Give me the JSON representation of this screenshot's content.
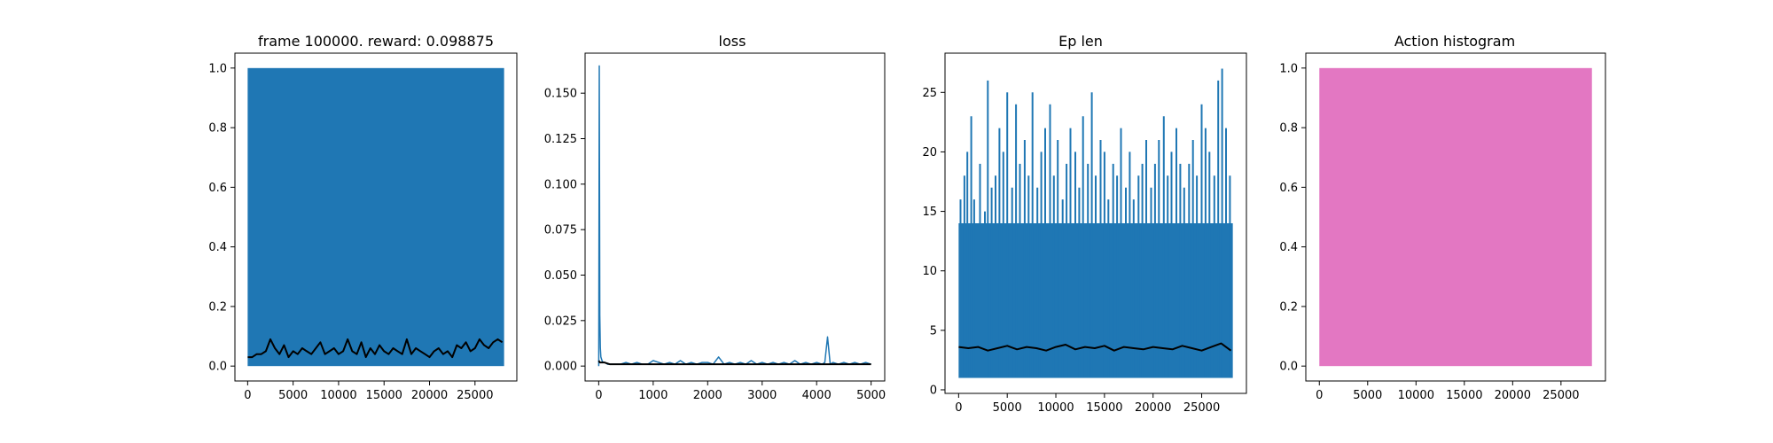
{
  "chart_data": [
    {
      "type": "line",
      "title": "frame 100000. reward: 0.098875",
      "xlim": [
        -1400,
        29600
      ],
      "ylim": [
        -0.05,
        1.05
      ],
      "xticks": [
        0,
        5000,
        10000,
        15000,
        20000,
        25000
      ],
      "yticks": [
        0.0,
        0.2,
        0.4,
        0.6,
        0.8,
        1.0
      ],
      "ytick_labels": [
        "0.0",
        "0.2",
        "0.4",
        "0.6",
        "0.8",
        "1.0"
      ],
      "colors": {
        "raw": "#1f77b4",
        "smoothed": "#000000"
      },
      "series": [
        {
          "style": "band",
          "x": [
            0,
            28200
          ],
          "y_range": [
            0.0,
            1.0
          ]
        },
        {
          "style": "line",
          "x": [
            0,
            500,
            1000,
            1500,
            2000,
            2500,
            3000,
            3500,
            4000,
            4500,
            5000,
            5500,
            6000,
            6500,
            7000,
            7500,
            8000,
            8500,
            9000,
            9500,
            10000,
            10500,
            11000,
            11500,
            12000,
            12500,
            13000,
            13500,
            14000,
            14500,
            15000,
            15500,
            16000,
            16500,
            17000,
            17500,
            18000,
            18500,
            19000,
            19500,
            20000,
            20500,
            21000,
            21500,
            22000,
            22500,
            23000,
            23500,
            24000,
            24500,
            25000,
            25500,
            26000,
            26500,
            27000,
            27500,
            28000
          ],
          "y": [
            0.03,
            0.03,
            0.04,
            0.04,
            0.05,
            0.09,
            0.06,
            0.04,
            0.07,
            0.03,
            0.05,
            0.04,
            0.06,
            0.05,
            0.04,
            0.06,
            0.08,
            0.04,
            0.05,
            0.06,
            0.04,
            0.05,
            0.09,
            0.05,
            0.04,
            0.08,
            0.03,
            0.06,
            0.04,
            0.07,
            0.05,
            0.04,
            0.06,
            0.05,
            0.04,
            0.09,
            0.04,
            0.06,
            0.05,
            0.04,
            0.03,
            0.05,
            0.06,
            0.04,
            0.05,
            0.03,
            0.07,
            0.06,
            0.08,
            0.05,
            0.06,
            0.09,
            0.07,
            0.06,
            0.08,
            0.09,
            0.08
          ]
        }
      ]
    },
    {
      "type": "line",
      "title": "loss",
      "xlim": [
        -250,
        5250
      ],
      "ylim": [
        -0.0082,
        0.172
      ],
      "xticks": [
        0,
        1000,
        2000,
        3000,
        4000,
        5000
      ],
      "yticks": [
        0.0,
        0.025,
        0.05,
        0.075,
        0.1,
        0.125,
        0.15
      ],
      "ytick_labels": [
        "0.000",
        "0.025",
        "0.050",
        "0.075",
        "0.100",
        "0.125",
        "0.150"
      ],
      "colors": {
        "raw": "#1f77b4",
        "smoothed": "#000000"
      },
      "series": [
        {
          "style": "line",
          "x": [
            0,
            10,
            20,
            30,
            40,
            60,
            80,
            120,
            160,
            200,
            300,
            400,
            500,
            600,
            700,
            800,
            900,
            1000,
            1100,
            1200,
            1300,
            1400,
            1500,
            1600,
            1700,
            1800,
            1900,
            2000,
            2100,
            2200,
            2300,
            2400,
            2500,
            2600,
            2700,
            2800,
            2900,
            3000,
            3100,
            3200,
            3300,
            3400,
            3500,
            3600,
            3700,
            3800,
            3900,
            4000,
            4100,
            4150,
            4200,
            4250,
            4300,
            4400,
            4500,
            4600,
            4700,
            4800,
            4900,
            5000
          ],
          "y": [
            0.0,
            0.165,
            0.028,
            0.01,
            0.005,
            0.003,
            0.002,
            0.002,
            0.001,
            0.001,
            0.001,
            0.001,
            0.002,
            0.001,
            0.002,
            0.001,
            0.001,
            0.003,
            0.002,
            0.001,
            0.002,
            0.001,
            0.003,
            0.001,
            0.002,
            0.001,
            0.002,
            0.002,
            0.001,
            0.005,
            0.001,
            0.002,
            0.001,
            0.002,
            0.001,
            0.003,
            0.001,
            0.002,
            0.001,
            0.002,
            0.001,
            0.002,
            0.001,
            0.003,
            0.001,
            0.002,
            0.001,
            0.002,
            0.001,
            0.002,
            0.016,
            0.001,
            0.002,
            0.001,
            0.002,
            0.001,
            0.002,
            0.001,
            0.002,
            0.001
          ]
        },
        {
          "style": "line",
          "x": [
            0,
            20,
            40,
            100,
            200,
            300,
            500,
            1000,
            1500,
            2000,
            2500,
            3000,
            3500,
            4000,
            4500,
            5000
          ],
          "y": [
            0.003,
            0.002,
            0.002,
            0.002,
            0.001,
            0.001,
            0.001,
            0.001,
            0.001,
            0.001,
            0.001,
            0.001,
            0.001,
            0.001,
            0.001,
            0.001
          ]
        }
      ]
    },
    {
      "type": "line",
      "title": "Ep len",
      "xlim": [
        -1400,
        29600
      ],
      "ylim": [
        -0.3,
        28.3
      ],
      "xticks": [
        0,
        5000,
        10000,
        15000,
        20000,
        25000
      ],
      "yticks": [
        0,
        5,
        10,
        15,
        20,
        25
      ],
      "ytick_labels": [
        "0",
        "5",
        "10",
        "15",
        "20",
        "25"
      ],
      "colors": {
        "raw": "#1f77b4",
        "smoothed": "#000000"
      },
      "series": [
        {
          "style": "band",
          "x": [
            0,
            28200
          ],
          "y_range": [
            1.0,
            14.0
          ]
        },
        {
          "style": "spikes",
          "x": [
            200,
            600,
            900,
            1300,
            1600,
            2200,
            2700,
            3000,
            3400,
            3800,
            4200,
            4600,
            5000,
            5500,
            5900,
            6300,
            6800,
            7200,
            7600,
            8100,
            8500,
            8900,
            9400,
            9800,
            10200,
            10700,
            11100,
            11500,
            12000,
            12400,
            12800,
            13300,
            13700,
            14100,
            14600,
            15000,
            15400,
            15900,
            16300,
            16700,
            17200,
            17600,
            18000,
            18500,
            18900,
            19300,
            19800,
            20200,
            20600,
            21100,
            21500,
            21900,
            22400,
            22800,
            23200,
            23700,
            24100,
            24500,
            25000,
            25400,
            25800,
            26300,
            26700,
            27100,
            27500,
            27900
          ],
          "y": [
            16,
            18,
            20,
            23,
            16,
            19,
            15,
            26,
            17,
            18,
            22,
            20,
            25,
            17,
            24,
            19,
            21,
            18,
            25,
            17,
            20,
            22,
            24,
            18,
            21,
            16,
            19,
            22,
            20,
            17,
            23,
            19,
            25,
            18,
            21,
            20,
            16,
            19,
            18,
            22,
            17,
            20,
            16,
            18,
            19,
            21,
            17,
            19,
            21,
            23,
            18,
            20,
            22,
            19,
            17,
            19,
            21,
            18,
            24,
            22,
            20,
            18,
            26,
            27,
            22,
            18
          ]
        },
        {
          "style": "line",
          "x": [
            0,
            1000,
            2000,
            3000,
            4000,
            5000,
            6000,
            7000,
            8000,
            9000,
            10000,
            11000,
            12000,
            13000,
            14000,
            15000,
            16000,
            17000,
            18000,
            19000,
            20000,
            21000,
            22000,
            23000,
            24000,
            25000,
            26000,
            27000,
            28000
          ],
          "y": [
            3.6,
            3.5,
            3.6,
            3.3,
            3.5,
            3.7,
            3.4,
            3.6,
            3.5,
            3.3,
            3.6,
            3.8,
            3.4,
            3.6,
            3.5,
            3.7,
            3.3,
            3.6,
            3.5,
            3.4,
            3.6,
            3.5,
            3.4,
            3.7,
            3.5,
            3.3,
            3.6,
            3.9,
            3.3
          ]
        }
      ]
    },
    {
      "type": "bar",
      "title": "Action histogram",
      "xlim": [
        -1400,
        29600
      ],
      "ylim": [
        -0.05,
        1.05
      ],
      "xticks": [
        0,
        5000,
        10000,
        15000,
        20000,
        25000
      ],
      "yticks": [
        0.0,
        0.2,
        0.4,
        0.6,
        0.8,
        1.0
      ],
      "ytick_labels": [
        "0.0",
        "0.2",
        "0.4",
        "0.6",
        "0.8",
        "1.0"
      ],
      "colors": {
        "bar": "#e377c2"
      },
      "bars": [
        {
          "x0": 0,
          "x1": 28200,
          "value": 1.0
        }
      ]
    }
  ]
}
